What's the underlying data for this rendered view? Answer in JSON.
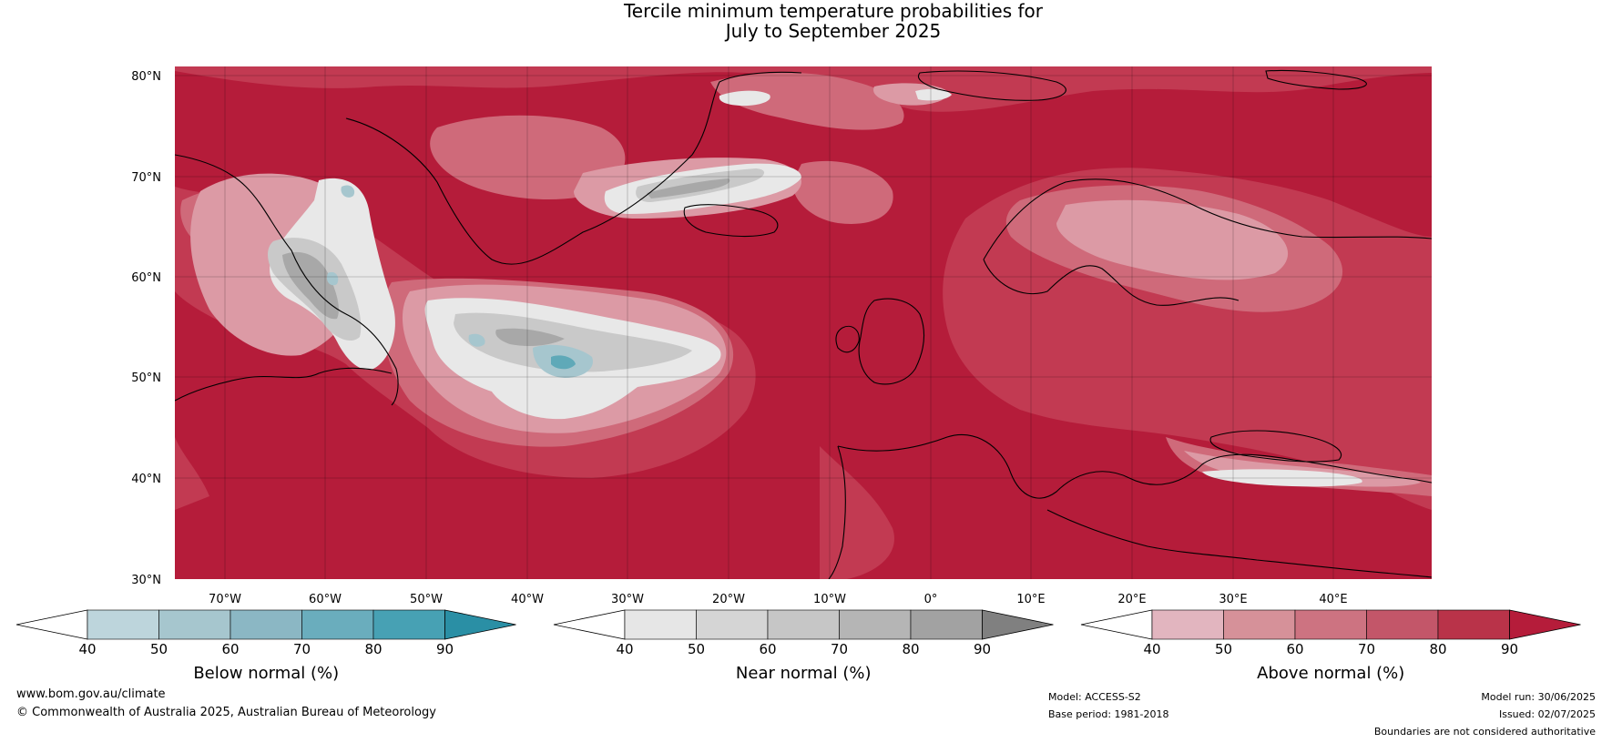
{
  "title": {
    "line1": "Tercile minimum temperature probabilities for",
    "line2": "July to September 2025"
  },
  "map": {
    "lat_labels": [
      "80°N",
      "70°N",
      "60°N",
      "50°N",
      "40°N",
      "30°N"
    ],
    "lon_labels": [
      "70°W",
      "60°W",
      "50°W",
      "40°W",
      "30°W",
      "20°W",
      "10°W",
      "0°",
      "10°E",
      "20°E",
      "30°E",
      "40°E"
    ],
    "colors": {
      "ocean_base": "#b51c3a",
      "above_high": "#c23a52",
      "above_mid": "#cf6a7a",
      "above_low": "#dc9aa5",
      "near_light": "#e8e8e8",
      "near_mid": "#c9c9c9",
      "near_dark": "#a8a8a8",
      "below_light": "#a6c6ce",
      "below_mid": "#5fa9b8"
    }
  },
  "colorbars": [
    {
      "name": "Below normal (%)",
      "ticks": [
        "40",
        "50",
        "60",
        "70",
        "80",
        "90"
      ],
      "colors": [
        "#ffffff",
        "#bdd5dc",
        "#a6c6ce",
        "#8bb7c4",
        "#6aadbd",
        "#47a1b4",
        "#2a8fa5"
      ]
    },
    {
      "name": "Near normal (%)",
      "ticks": [
        "40",
        "50",
        "60",
        "70",
        "80",
        "90"
      ],
      "colors": [
        "#ffffff",
        "#e6e6e6",
        "#d5d5d5",
        "#c6c6c6",
        "#b5b5b5",
        "#a2a2a2",
        "#808080"
      ]
    },
    {
      "name": "Above normal (%)",
      "ticks": [
        "40",
        "50",
        "60",
        "70",
        "80",
        "90"
      ],
      "colors": [
        "#ffffff",
        "#e2b5bf",
        "#d69199",
        "#cd7381",
        "#c35669",
        "#b93349",
        "#b51c3a"
      ]
    }
  ],
  "footer": {
    "website": "www.bom.gov.au/climate",
    "copyright": "© Commonwealth of Australia 2025, Australian Bureau of Meteorology",
    "model": "Model: ACCESS-S2",
    "base_period": "Base period: 1981-2018",
    "model_run": "Model run: 30/06/2025",
    "issued": "Issued: 02/07/2025",
    "disclaimer": "Boundaries are not considered authoritative"
  }
}
